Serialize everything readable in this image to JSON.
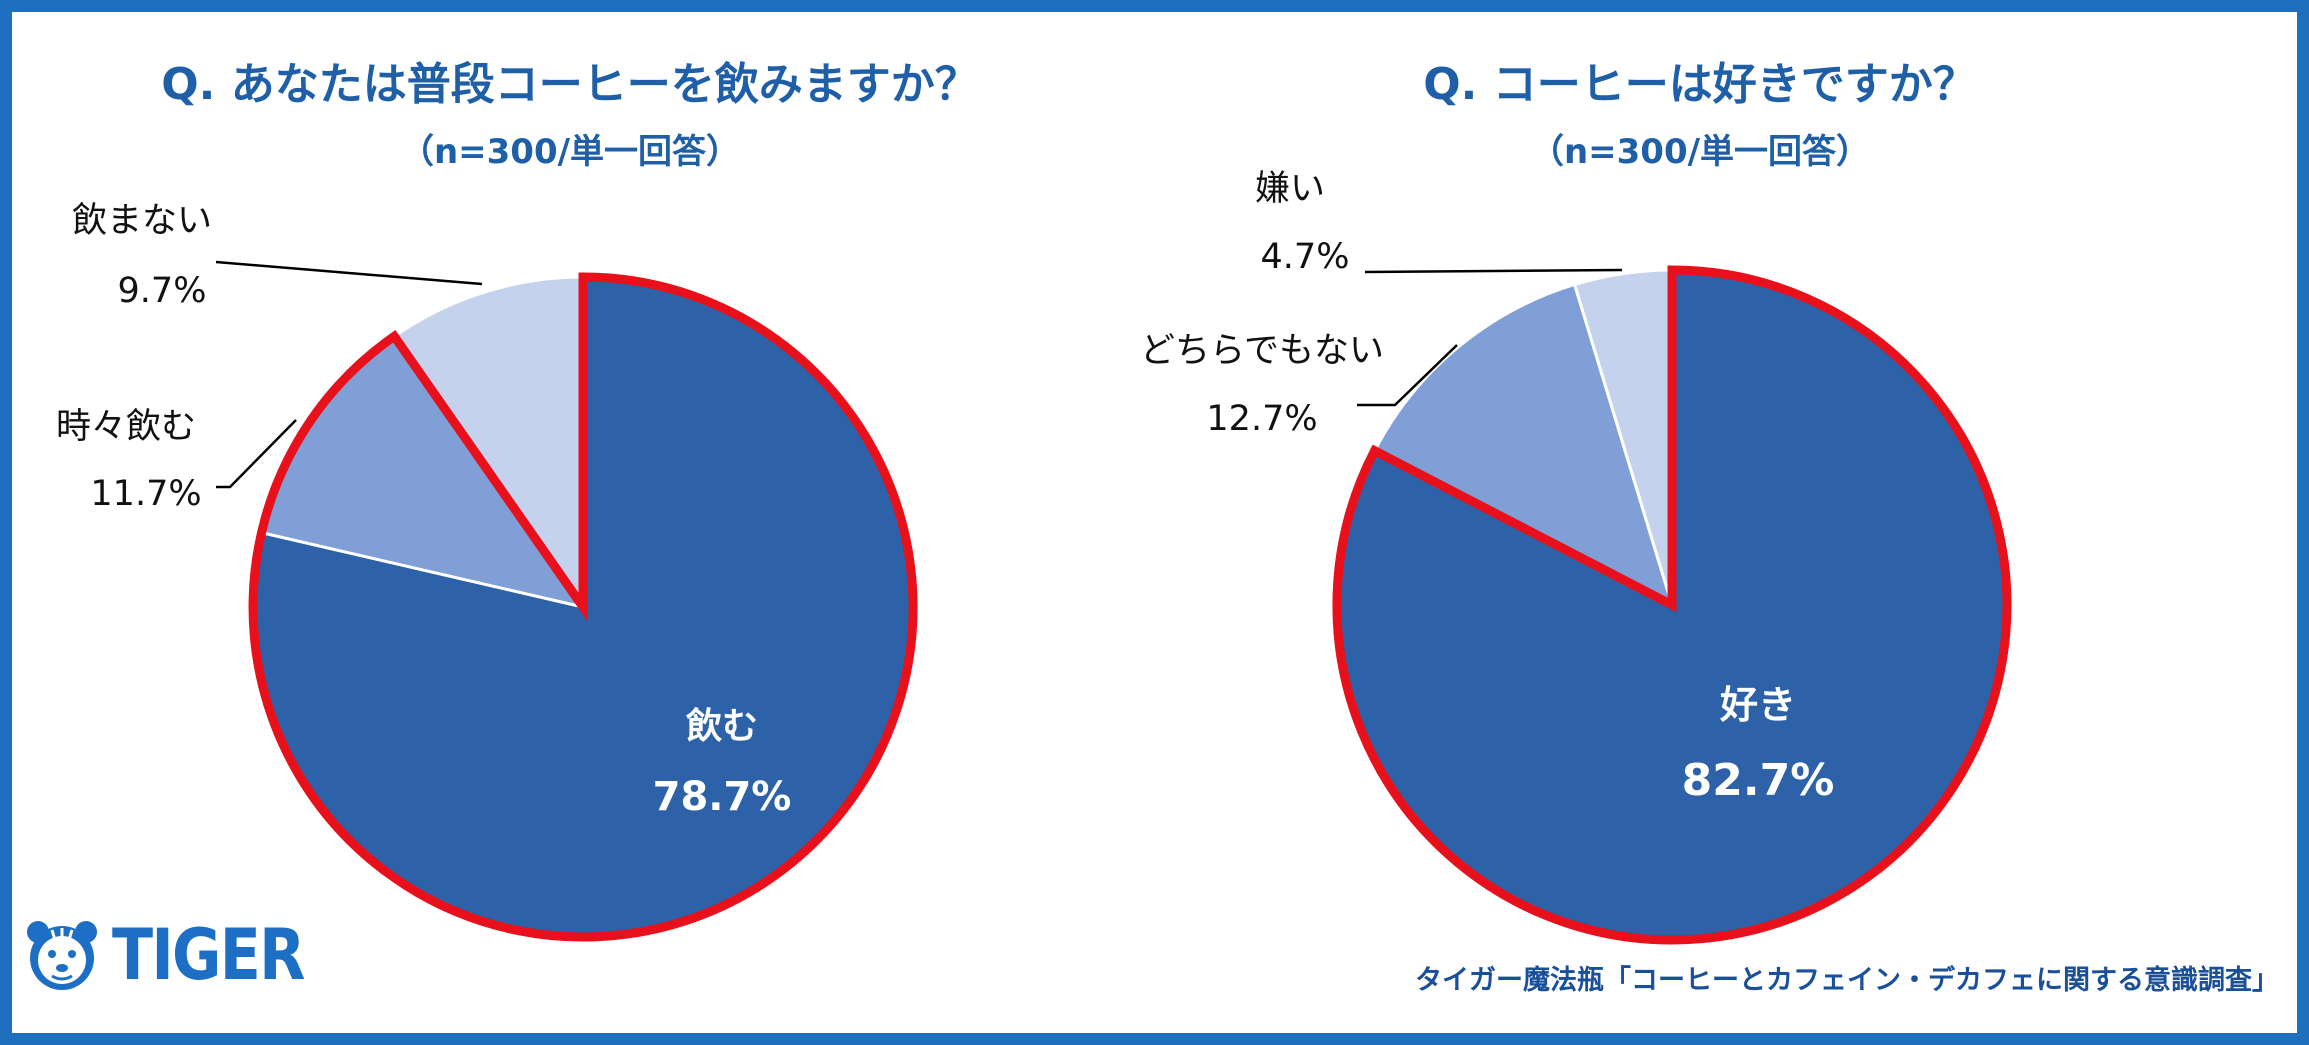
{
  "chart_data": [
    {
      "type": "pie",
      "title": "Q. あなたは普段コーヒーを飲みますか？",
      "subtitle": "（n=300/単一回答）",
      "series": [
        {
          "label": "飲む",
          "value": 78.7,
          "value_label": "78.7%",
          "color": "#2e62a8"
        },
        {
          "label": "時々飲む",
          "value": 11.7,
          "value_label": "11.7%",
          "color": "#7f9fd6"
        },
        {
          "label": "飲まない",
          "value": 9.7,
          "value_label": "9.7%",
          "color": "#c5d2ee"
        }
      ],
      "highlight": "飲む + 時々飲む (red outline)"
    },
    {
      "type": "pie",
      "title": "Q. コーヒーは好きですか？",
      "subtitle": "（n=300/単一回答）",
      "series": [
        {
          "label": "好き",
          "value": 82.7,
          "value_label": "82.7%",
          "color": "#2e62a8"
        },
        {
          "label": "どちらでもない",
          "value": 12.7,
          "value_label": "12.7%",
          "color": "#7f9fd6"
        },
        {
          "label": "嫌い",
          "value": 4.7,
          "value_label": "4.7%",
          "color": "#c5d2ee"
        }
      ],
      "highlight": "好き (red outline)"
    }
  ],
  "logo": {
    "text": "TIGER",
    "icon": "tiger-face-icon"
  },
  "source": "タイガー魔法瓶「コーヒーとカフェイン・デカフェに関する意識調査」",
  "colors": {
    "frame": "#1f6fbf",
    "title": "#1f5fa8",
    "highlight": "#e8101a"
  }
}
